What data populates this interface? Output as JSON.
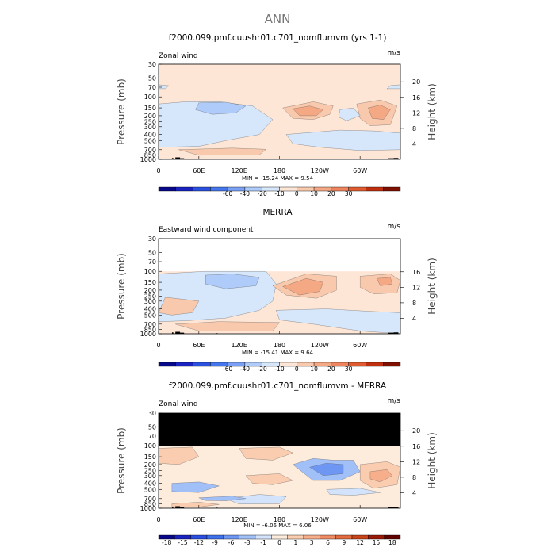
{
  "page_title": "ANN",
  "panels": [
    {
      "title": "f2000.099.pmf.cuushr01.c701_nomflumvm (yrs 1-1)",
      "left_label": "Zonal wind",
      "units": "m/s",
      "stats": "MIN = -15.24   MAX =   9.54",
      "colorbar": [
        "-60",
        "-40",
        "-20",
        "-10",
        "0",
        "10",
        "20",
        "30"
      ],
      "height_ticks": [
        "20",
        "16",
        "12",
        "8",
        "4"
      ]
    },
    {
      "title": "MERRA",
      "left_label": "Eastward wind component",
      "units": "m/s",
      "stats": "MIN = -15.41   MAX =   9.64",
      "colorbar": [
        "-60",
        "-40",
        "-20",
        "-10",
        "0",
        "10",
        "20",
        "30"
      ],
      "height_ticks": [
        "16",
        "12",
        "8",
        "4"
      ]
    },
    {
      "title": "f2000.099.pmf.cuushr01.c701_nomflumvm - MERRA",
      "left_label": "Zonal wind",
      "units": "m/s",
      "stats": "MIN = -6.06   MAX =   6.06",
      "colorbar": [
        "-18",
        "-15",
        "-12",
        "-9",
        "-6",
        "-3",
        "-1",
        "0",
        "1",
        "3",
        "6",
        "9",
        "12",
        "15",
        "18"
      ],
      "height_ticks": [
        "20",
        "16",
        "12",
        "8",
        "4"
      ]
    }
  ],
  "axis": {
    "ylabel": "Pressure (mb)",
    "ylabel_right": "Height (km)",
    "pressure_ticks": [
      "30",
      "50",
      "70",
      "100",
      "150",
      "200",
      "250",
      "300",
      "400",
      "500",
      "700",
      "850",
      "1000"
    ],
    "lon_ticks": [
      "0",
      "60E",
      "120E",
      "180",
      "120W",
      "60W"
    ]
  },
  "chart_data": [
    {
      "type": "heatmap",
      "title": "f2000.099.pmf.cuushr01.c701_nomflumvm (yrs 1-1)",
      "variable": "Zonal wind",
      "units": "m/s",
      "x": "longitude 0-360",
      "y": "pressure 1000-30 mb",
      "min": -15.24,
      "max": 9.54,
      "contour_levels": [
        -60,
        -40,
        -20,
        -10,
        0,
        10,
        20,
        30
      ]
    },
    {
      "type": "heatmap",
      "title": "MERRA",
      "variable": "Eastward wind component",
      "units": "m/s",
      "x": "longitude 0-360",
      "y": "pressure 1000-100 mb",
      "min": -15.41,
      "max": 9.64,
      "contour_levels": [
        -60,
        -40,
        -20,
        -10,
        0,
        10,
        20,
        30
      ]
    },
    {
      "type": "heatmap",
      "title": "f2000.099.pmf.cuushr01.c701_nomflumvm - MERRA",
      "variable": "Zonal wind",
      "units": "m/s",
      "x": "longitude 0-360",
      "y": "pressure 1000-30 mb",
      "min": -6.06,
      "max": 6.06,
      "contour_levels": [
        -18,
        -15,
        -12,
        -9,
        -6,
        -3,
        -1,
        0,
        1,
        3,
        6,
        9,
        12,
        15,
        18
      ]
    }
  ],
  "colors": {
    "diverging": [
      "#08088a",
      "#1a22c0",
      "#2a50e0",
      "#4477ee",
      "#7aa0f5",
      "#aecbf9",
      "#d6e6fb",
      "#fde6d6",
      "#f9c9ad",
      "#f5a884",
      "#ef855e",
      "#e05c30",
      "#c03010",
      "#801000"
    ],
    "diff": [
      "#08088a",
      "#1a22c0",
      "#2a4ee0",
      "#3f70ec",
      "#6e97f4",
      "#a2c0f8",
      "#d2e3fb",
      "#fdebdc",
      "#fbcdb0",
      "#f7ae8a",
      "#f08c64",
      "#e26b40",
      "#c94418",
      "#9a1a08",
      "#600000"
    ]
  }
}
